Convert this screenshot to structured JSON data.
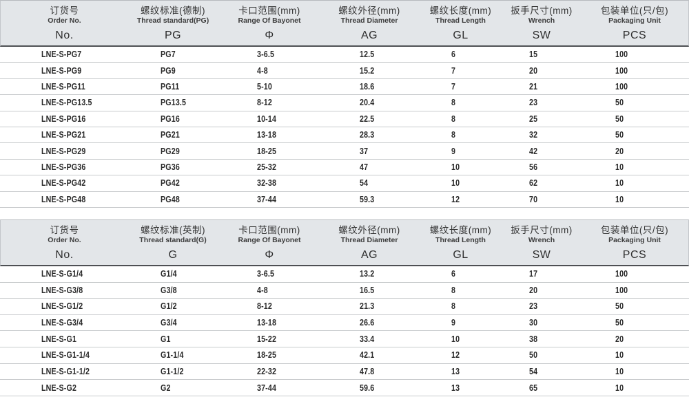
{
  "colors": {
    "header_bg": "#e3e6e9",
    "header_border": "#b6b9bd",
    "header_bottom_line": "#4e5054",
    "row_separator": "#c7cacc",
    "text": "#222222"
  },
  "tables": [
    {
      "name": "pg-thread-table",
      "columns": [
        {
          "key": "order-no",
          "zh": "订货号",
          "en": "Order No.",
          "code": "No."
        },
        {
          "key": "thread-standard",
          "zh": "螺纹标准(德制)",
          "en": "Thread standard(PG)",
          "code": "PG"
        },
        {
          "key": "bayonet-range",
          "zh": "卡口范围(mm)",
          "en": "Range Of Bayonet",
          "code": "Φ"
        },
        {
          "key": "thread-diameter",
          "zh": "螺纹外径(mm)",
          "en": "Thread Diameter",
          "code": "AG"
        },
        {
          "key": "thread-length",
          "zh": "螺纹长度(mm)",
          "en": "Thread Length",
          "code": "GL"
        },
        {
          "key": "wrench",
          "zh": "扳手尺寸(mm)",
          "en": "Wrench",
          "code": "SW"
        },
        {
          "key": "packaging-unit",
          "zh": "包装单位(只/包)",
          "en": "Packaging Unit",
          "code": "PCS"
        }
      ],
      "rows": [
        [
          "LNE-S-PG7",
          "PG7",
          "3-6.5",
          "12.5",
          "6",
          "15",
          "100"
        ],
        [
          "LNE-S-PG9",
          "PG9",
          "4-8",
          "15.2",
          "7",
          "20",
          "100"
        ],
        [
          "LNE-S-PG11",
          "PG11",
          "5-10",
          "18.6",
          "7",
          "21",
          "100"
        ],
        [
          "LNE-S-PG13.5",
          "PG13.5",
          "8-12",
          "20.4",
          "8",
          "23",
          "50"
        ],
        [
          "LNE-S-PG16",
          "PG16",
          "10-14",
          "22.5",
          "8",
          "25",
          "50"
        ],
        [
          "LNE-S-PG21",
          "PG21",
          "13-18",
          "28.3",
          "8",
          "32",
          "50"
        ],
        [
          "LNE-S-PG29",
          "PG29",
          "18-25",
          "37",
          "9",
          "42",
          "20"
        ],
        [
          "LNE-S-PG36",
          "PG36",
          "25-32",
          "47",
          "10",
          "56",
          "10"
        ],
        [
          "LNE-S-PG42",
          "PG42",
          "32-38",
          "54",
          "10",
          "62",
          "10"
        ],
        [
          "LNE-S-PG48",
          "PG48",
          "37-44",
          "59.3",
          "12",
          "70",
          "10"
        ]
      ]
    },
    {
      "name": "g-thread-table",
      "columns": [
        {
          "key": "order-no",
          "zh": "订货号",
          "en": "Order No.",
          "code": "No."
        },
        {
          "key": "thread-standard",
          "zh": "螺纹标准(英制)",
          "en": "Thread standard(G)",
          "code": "G"
        },
        {
          "key": "bayonet-range",
          "zh": "卡口范围(mm)",
          "en": "Range Of Bayonet",
          "code": "Φ"
        },
        {
          "key": "thread-diameter",
          "zh": "螺纹外径(mm)",
          "en": "Thread Diameter",
          "code": "AG"
        },
        {
          "key": "thread-length",
          "zh": "螺纹长度(mm)",
          "en": "Thread Length",
          "code": "GL"
        },
        {
          "key": "wrench",
          "zh": "扳手尺寸(mm)",
          "en": "Wrench",
          "code": "SW"
        },
        {
          "key": "packaging-unit",
          "zh": "包装单位(只/包)",
          "en": "Packaging Unit",
          "code": "PCS"
        }
      ],
      "rows": [
        [
          "LNE-S-G1/4",
          "G1/4",
          "3-6.5",
          "13.2",
          "6",
          "17",
          "100"
        ],
        [
          "LNE-S-G3/8",
          "G3/8",
          "4-8",
          "16.5",
          "8",
          "20",
          "100"
        ],
        [
          "LNE-S-G1/2",
          "G1/2",
          "8-12",
          "21.3",
          "8",
          "23",
          "50"
        ],
        [
          "LNE-S-G3/4",
          "G3/4",
          "13-18",
          "26.6",
          "9",
          "30",
          "50"
        ],
        [
          "LNE-S-G1",
          "G1",
          "15-22",
          "33.4",
          "10",
          "38",
          "20"
        ],
        [
          "LNE-S-G1-1/4",
          "G1-1/4",
          "18-25",
          "42.1",
          "12",
          "50",
          "10"
        ],
        [
          "LNE-S-G1-1/2",
          "G1-1/2",
          "22-32",
          "47.8",
          "13",
          "54",
          "10"
        ],
        [
          "LNE-S-G2",
          "G2",
          "37-44",
          "59.6",
          "13",
          "65",
          "10"
        ]
      ]
    }
  ]
}
